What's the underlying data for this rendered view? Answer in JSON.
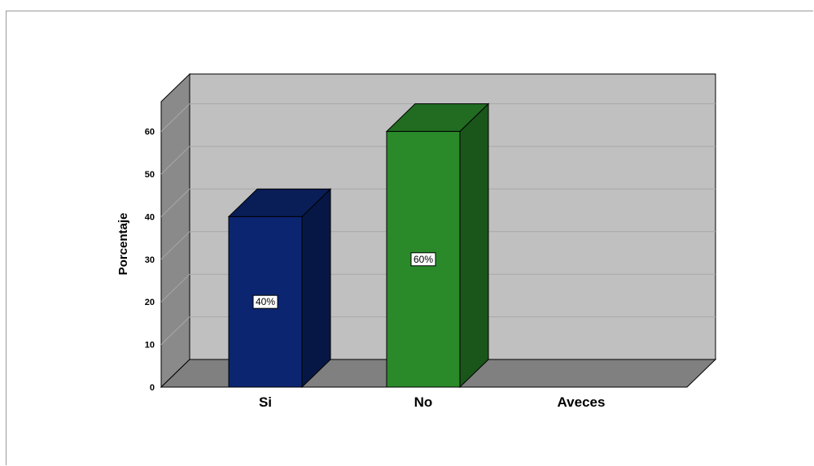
{
  "chart_data": {
    "type": "bar",
    "title": "",
    "xlabel": "",
    "ylabel": "Porcentaje",
    "categories": [
      "Si",
      "No",
      "Aveces"
    ],
    "values": [
      40,
      60,
      0
    ],
    "data_labels": [
      "40%",
      "60%",
      ""
    ],
    "yticks": [
      "0",
      "10",
      "20",
      "30",
      "40",
      "50",
      "60"
    ],
    "ylim": [
      0,
      65
    ],
    "grid": true,
    "legend": "none",
    "style": "3d",
    "colors": {
      "bars": [
        "#0b2570",
        "#2a8a2a",
        "#7f7f7f"
      ],
      "back_wall": "#c0c0c0",
      "side_wall": "#8a8a8a",
      "floor": "#808080"
    }
  }
}
